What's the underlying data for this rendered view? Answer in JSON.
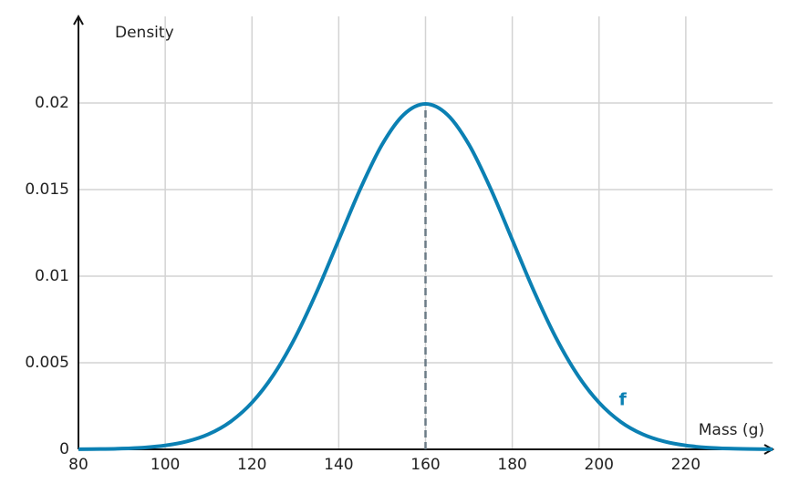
{
  "chart_data": {
    "type": "line",
    "y_label": "Density",
    "x_label": "Mass (g)",
    "x": [
      80,
      85,
      90,
      95,
      100,
      105,
      110,
      115,
      120,
      125,
      130,
      135,
      140,
      145,
      150,
      155,
      160,
      165,
      170,
      175,
      180,
      185,
      190,
      195,
      200,
      205,
      210,
      215,
      220,
      225,
      230,
      235,
      240
    ],
    "series": [
      {
        "name": "f",
        "color": "#0b80b3",
        "values": [
          6.7e-06,
          1.76e-05,
          4.36e-05,
          0.0001014,
          0.0002216,
          0.0004548,
          0.0008764,
          0.001587,
          0.0026995,
          0.004314,
          0.006476,
          0.009132,
          0.012099,
          0.015057,
          0.017603,
          0.019333,
          0.019947,
          0.019333,
          0.017603,
          0.015057,
          0.012099,
          0.009132,
          0.006476,
          0.004314,
          0.0026995,
          0.001587,
          0.0008764,
          0.0004548,
          0.0002216,
          0.0001014,
          4.36e-05,
          1.76e-05,
          6.7e-06
        ]
      }
    ],
    "xlim": [
      80,
      240
    ],
    "ylim": [
      0,
      0.025
    ],
    "xticks": [
      80,
      100,
      120,
      140,
      160,
      180,
      200,
      220
    ],
    "yticks": [
      0,
      0.005,
      0.01,
      0.015,
      0.02
    ],
    "grid": true
  }
}
